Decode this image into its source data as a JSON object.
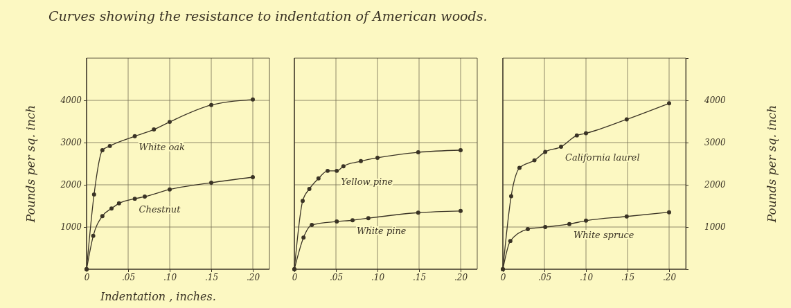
{
  "chart_data": [
    {
      "type": "line",
      "title": "Curves showing the resistance to indentation of American woods.",
      "xlabel": "Indentation , inches.",
      "ylabel": "Pounds per sq. inch",
      "xlim": [
        0,
        0.22
      ],
      "xticks": [
        {
          "value": 0,
          "label": "0"
        },
        {
          "value": 0.05,
          "label": ".05"
        },
        {
          "value": 0.1,
          "label": ".10"
        },
        {
          "value": 0.15,
          "label": ".15"
        },
        {
          "value": 0.2,
          "label": ".20"
        }
      ],
      "ylim": [
        0,
        5000
      ],
      "yticks": [
        1000,
        2000,
        3000,
        4000
      ],
      "grid": true,
      "marker": "circle",
      "line_style": "solid",
      "series": [
        {
          "name": "White oak",
          "color": "#3a3325",
          "x": [
            0,
            0.009,
            0.019,
            0.028,
            0.058,
            0.081,
            0.1,
            0.15,
            0.2
          ],
          "values": [
            0,
            1770,
            2820,
            2920,
            3150,
            3310,
            3490,
            3890,
            4020
          ]
        },
        {
          "name": "Chestnut",
          "color": "#3a3325",
          "x": [
            0,
            0.008,
            0.019,
            0.03,
            0.039,
            0.058,
            0.07,
            0.1,
            0.15,
            0.2
          ],
          "values": [
            0,
            790,
            1260,
            1440,
            1560,
            1670,
            1720,
            1890,
            2050,
            2180
          ]
        }
      ]
    },
    {
      "type": "line",
      "xlim": [
        0,
        0.22
      ],
      "xticks": [
        {
          "value": 0,
          "label": "0"
        },
        {
          "value": 0.05,
          "label": ".05"
        },
        {
          "value": 0.1,
          "label": ".10"
        },
        {
          "value": 0.15,
          "label": ".15"
        },
        {
          "value": 0.2,
          "label": ".20"
        }
      ],
      "ylim": [
        0,
        5000
      ],
      "yticks": [
        1000,
        2000,
        3000,
        4000
      ],
      "tick_labels": "x",
      "grid": true,
      "marker": "circle",
      "line_style": "solid",
      "series": [
        {
          "name": "Yellow pine",
          "color": "#3a3325",
          "x": [
            0,
            0.01,
            0.018,
            0.029,
            0.04,
            0.051,
            0.059,
            0.08,
            0.1,
            0.149,
            0.2
          ],
          "values": [
            0,
            1620,
            1900,
            2150,
            2330,
            2330,
            2440,
            2560,
            2640,
            2770,
            2820
          ]
        },
        {
          "name": "White pine",
          "color": "#3a3325",
          "x": [
            0,
            0.011,
            0.021,
            0.051,
            0.07,
            0.089,
            0.149,
            0.2
          ],
          "values": [
            0,
            750,
            1050,
            1130,
            1160,
            1210,
            1340,
            1380
          ]
        }
      ]
    },
    {
      "type": "line",
      "y2label": "Pounds per sq. inch",
      "xlim": [
        0,
        0.22
      ],
      "xticks": [
        {
          "value": 0,
          "label": "0"
        },
        {
          "value": 0.05,
          "label": ".05"
        },
        {
          "value": 0.1,
          "label": ".10"
        },
        {
          "value": 0.15,
          "label": ".15"
        },
        {
          "value": 0.2,
          "label": ".20"
        }
      ],
      "y2lim": [
        0,
        5000
      ],
      "y2ticks": [
        1000,
        2000,
        3000,
        4000
      ],
      "grid": true,
      "marker": "circle",
      "line_style": "solid",
      "series": [
        {
          "name": "California laurel",
          "axis": "y2",
          "color": "#3a3325",
          "x": [
            0,
            0.01,
            0.02,
            0.038,
            0.051,
            0.07,
            0.089,
            0.1,
            0.149,
            0.2
          ],
          "values": [
            0,
            1730,
            2400,
            2580,
            2780,
            2900,
            3170,
            3220,
            3550,
            3930
          ]
        },
        {
          "name": "White spruce",
          "axis": "y2",
          "color": "#3a3325",
          "x": [
            0,
            0.009,
            0.03,
            0.051,
            0.08,
            0.1,
            0.149,
            0.2
          ],
          "values": [
            0,
            670,
            950,
            1000,
            1070,
            1150,
            1250,
            1350
          ]
        }
      ]
    }
  ]
}
